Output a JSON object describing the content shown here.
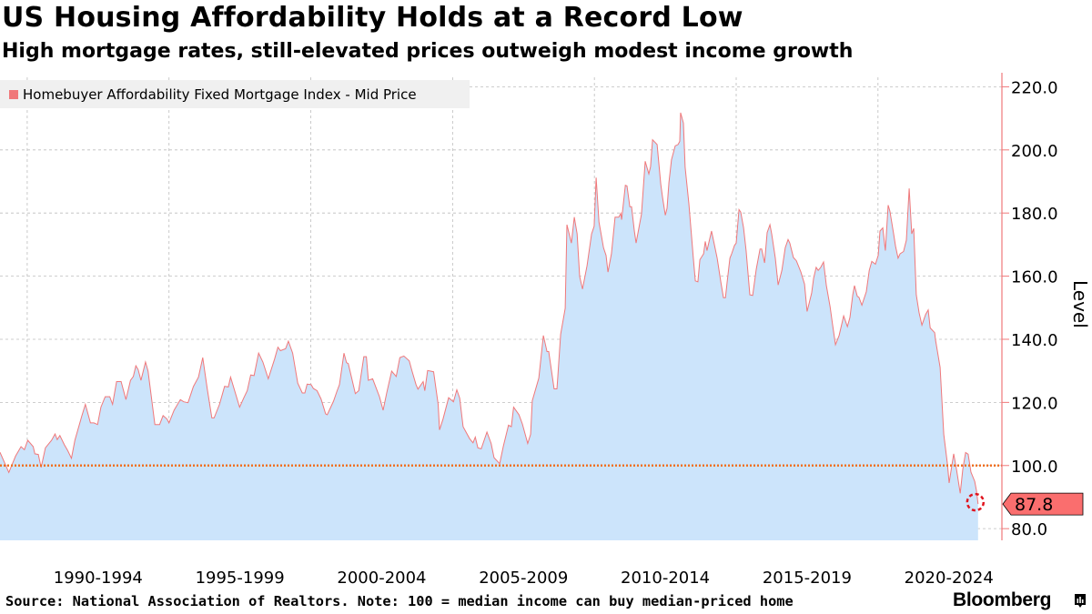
{
  "title": "US Housing Affordability Holds at a Record Low",
  "subtitle": "High mortgage rates, still-elevated prices outweigh modest income growth",
  "source": "Source: National Association of Realtors. Note: 100 = median income can buy median-priced home",
  "brand": "Bloomberg",
  "colors": {
    "line": "#f0787a",
    "fill": "#cce4fb",
    "reference": "#f07022",
    "axis": "#f0787a",
    "last_label_bg": "#fa6e6e",
    "legend_bg": "#f0f0f0"
  },
  "chart_data": {
    "type": "area",
    "legend_position": "top-left",
    "grid": true,
    "ylabel": "Level",
    "ylim": [
      76.3,
      223
    ],
    "xlim": [
      1989.04,
      2024.37
    ],
    "y_ticks": [
      "80.0",
      "100.0",
      "120.0",
      "140.0",
      "160.0",
      "180.0",
      "200.0",
      "220.0"
    ],
    "x_tick_labels": [
      "1990-1994",
      "1995-1999",
      "2000-2004",
      "2005-2009",
      "2010-2014",
      "2015-2019",
      "2020-2024"
    ],
    "reference_line": 100,
    "last_value_label": "87.8",
    "series": [
      {
        "name": "Homebuyer Affordability Fixed Mortgage Index - Mid Price",
        "x": [
          1989.04,
          1989.35,
          1989.59,
          1989.78,
          1989.9,
          1990.02,
          1990.21,
          1990.27,
          1990.39,
          1990.49,
          1990.64,
          1990.86,
          1990.98,
          1991.06,
          1991.15,
          1991.31,
          1991.43,
          1991.56,
          1991.68,
          1991.92,
          1992.05,
          1992.23,
          1992.35,
          1992.48,
          1992.6,
          1992.75,
          1992.91,
          1993.01,
          1993.15,
          1993.31,
          1993.48,
          1993.64,
          1993.74,
          1993.83,
          1993.91,
          1994.01,
          1994.17,
          1994.26,
          1994.5,
          1994.67,
          1994.79,
          1994.93,
          1995.0,
          1995.18,
          1995.4,
          1995.52,
          1995.67,
          1995.86,
          1996.04,
          1996.19,
          1996.35,
          1996.51,
          1996.59,
          1996.78,
          1996.96,
          1997.09,
          1997.17,
          1997.49,
          1997.64,
          1997.76,
          1997.88,
          1998.0,
          1998.16,
          1998.31,
          1998.5,
          1998.72,
          1998.84,
          1998.93,
          1999.11,
          1999.21,
          1999.36,
          1999.54,
          1999.7,
          1999.79,
          1999.87,
          2000.01,
          2000.09,
          2000.22,
          2000.36,
          2000.52,
          2000.58,
          2000.8,
          2000.93,
          2001.01,
          2001.17,
          2001.26,
          2001.32,
          2001.57,
          2001.69,
          2001.87,
          2001.96,
          2002.03,
          2002.18,
          2002.42,
          2002.55,
          2002.67,
          2002.85,
          2003.01,
          2003.14,
          2003.28,
          2003.47,
          2003.57,
          2003.71,
          2003.78,
          2003.96,
          2004.02,
          2004.12,
          2004.33,
          2004.49,
          2004.54,
          2004.66,
          2004.86,
          2005.03,
          2005.15,
          2005.25,
          2005.37,
          2005.6,
          2005.72,
          2005.8,
          2005.89,
          2006.01,
          2006.21,
          2006.36,
          2006.46,
          2006.66,
          2006.79,
          2006.97,
          2007.07,
          2007.15,
          2007.34,
          2007.46,
          2007.65,
          2007.75,
          2007.81,
          2008.04,
          2008.2,
          2008.33,
          2008.39,
          2008.58,
          2008.68,
          2008.71,
          2008.81,
          2008.97,
          2009.03,
          2009.19,
          2009.29,
          2009.39,
          2009.48,
          2009.58,
          2009.74,
          2009.9,
          2009.99,
          2010.06,
          2010.16,
          2010.32,
          2010.41,
          2010.48,
          2010.6,
          2010.73,
          2010.86,
          2010.93,
          2010.96,
          2011.09,
          2011.15,
          2011.25,
          2011.31,
          2011.41,
          2011.47,
          2011.57,
          2011.66,
          2011.79,
          2011.92,
          2011.98,
          2012.05,
          2012.21,
          2012.34,
          2012.4,
          2012.5,
          2012.56,
          2012.63,
          2012.72,
          2012.85,
          2012.95,
          2013.01,
          2013.04,
          2013.14,
          2013.2,
          2013.33,
          2013.49,
          2013.56,
          2013.65,
          2013.72,
          2013.85,
          2013.91,
          2013.97,
          2014.13,
          2014.23,
          2014.33,
          2014.46,
          2014.55,
          2014.62,
          2014.68,
          2014.78,
          2014.84,
          2014.94,
          2015.0,
          2015.1,
          2015.16,
          2015.26,
          2015.35,
          2015.48,
          2015.58,
          2015.71,
          2015.84,
          2015.9,
          2016.0,
          2016.09,
          2016.19,
          2016.25,
          2016.38,
          2016.48,
          2016.61,
          2016.73,
          2016.83,
          2016.89,
          2017.02,
          2017.12,
          2017.28,
          2017.41,
          2017.5,
          2017.66,
          2017.73,
          2017.82,
          2017.89,
          2017.98,
          2018.08,
          2018.18,
          2018.31,
          2018.4,
          2018.5,
          2018.63,
          2018.79,
          2018.92,
          2019.01,
          2019.11,
          2019.17,
          2019.27,
          2019.33,
          2019.43,
          2019.59,
          2019.69,
          2019.78,
          2019.91,
          2020.01,
          2020.07,
          2020.17,
          2020.26,
          2020.36,
          2020.42,
          2020.55,
          2020.62,
          2020.71,
          2020.78,
          2020.9,
          2021.0,
          2021.1,
          2021.19,
          2021.26,
          2021.35,
          2021.45,
          2021.55,
          2021.68,
          2021.77,
          2021.84,
          2022.0,
          2022.03,
          2022.19,
          2022.32,
          2022.45,
          2022.51,
          2022.67,
          2022.77,
          2022.9,
          2022.99,
          2023.09,
          2023.18,
          2023.28,
          2023.41,
          2023.47,
          2023.53
        ],
        "values": [
          104.2,
          97.8,
          103,
          106,
          105,
          108,
          106,
          103.7,
          103.5,
          99.4,
          105.6,
          108,
          110,
          108.2,
          109.5,
          106.6,
          104.7,
          102.3,
          108,
          115.6,
          119.4,
          113.5,
          113.5,
          113,
          118.5,
          121.8,
          121.8,
          119.4,
          126.6,
          126.6,
          120.9,
          127,
          128.2,
          131.6,
          130.4,
          127,
          132.8,
          129.9,
          113,
          113,
          115.8,
          114.7,
          113.5,
          117.5,
          120.9,
          120.2,
          119.9,
          125,
          128,
          134.2,
          124.2,
          115.1,
          115.1,
          119.4,
          125.1,
          124.9,
          128,
          118.5,
          121.5,
          123.7,
          128.7,
          128.5,
          135.6,
          132.8,
          127.5,
          133.7,
          137.5,
          136.4,
          137,
          139.4,
          135.6,
          126.1,
          123,
          123,
          125.8,
          125.6,
          124.4,
          123.7,
          121.1,
          116.4,
          116.1,
          120.4,
          123.7,
          125.6,
          135.6,
          132.6,
          132.3,
          122.8,
          123.7,
          134.5,
          134.5,
          127,
          127.5,
          121.8,
          117.5,
          122.8,
          129.9,
          128.2,
          134.2,
          134.7,
          133.2,
          129.9,
          125.6,
          124.2,
          126.6,
          123.7,
          130.1,
          129.7,
          119.4,
          111.3,
          114.7,
          121.5,
          120.2,
          124,
          121.3,
          112.3,
          108.5,
          107.2,
          109,
          105.6,
          105.3,
          110.6,
          107,
          102.5,
          100.6,
          106.1,
          112.8,
          112.3,
          118.5,
          116.1,
          113.2,
          107,
          109.9,
          120.5,
          127.7,
          141.2,
          136.1,
          136.1,
          124.3,
          124.3,
          128.2,
          141.6,
          149.8,
          176.3,
          170.5,
          178.7,
          173.4,
          159.9,
          155.9,
          163.3,
          173.4,
          175.8,
          191.2,
          177.2,
          169,
          166.6,
          161.3,
          167.1,
          178.7,
          178.7,
          179.9,
          177.9,
          188.8,
          188.6,
          182,
          182,
          174.3,
          170.5,
          175.3,
          179.6,
          196.4,
          192.4,
          194.7,
          203.2,
          201.7,
          189.2,
          185.1,
          179.3,
          181.5,
          189.7,
          196.9,
          201.3,
          201.7,
          202.7,
          211.8,
          208.5,
          194.5,
          183,
          165.7,
          158.5,
          158.2,
          165.2,
          167.1,
          171,
          168.1,
          174.3,
          170,
          165.7,
          158,
          153.2,
          153.2,
          158,
          165.7,
          167.1,
          169.7,
          170.5,
          181.1,
          180.3,
          175.3,
          168.1,
          154.1,
          153.9,
          162.3,
          168.6,
          168.6,
          164.2,
          173.8,
          176.3,
          173.4,
          165.7,
          157.2,
          161.8,
          169,
          171.6,
          170.5,
          165.9,
          164.9,
          161.3,
          157.5,
          148.8,
          154.6,
          159.4,
          162.8,
          161.8,
          162.8,
          164.5,
          157,
          150.3,
          144.5,
          138.3,
          141.2,
          147.4,
          144,
          146.9,
          154.1,
          157,
          153.6,
          153.3,
          150.8,
          155.1,
          161.8,
          164.7,
          163.8,
          166.6,
          174.3,
          175.3,
          168.1,
          182.5,
          180.6,
          173.4,
          169.5,
          165.7,
          167.1,
          167.8,
          171.4,
          187.8,
          173.4,
          175.1,
          154.1,
          148.4,
          144.5,
          147.9,
          149.3,
          143.6,
          142.1,
          139.7,
          131.1,
          109.9,
          100.3,
          94.5,
          103.7,
          98.8,
          91.2,
          98.8,
          104.1,
          103.6,
          97.9,
          95,
          92.1,
          87.8
        ]
      }
    ]
  }
}
